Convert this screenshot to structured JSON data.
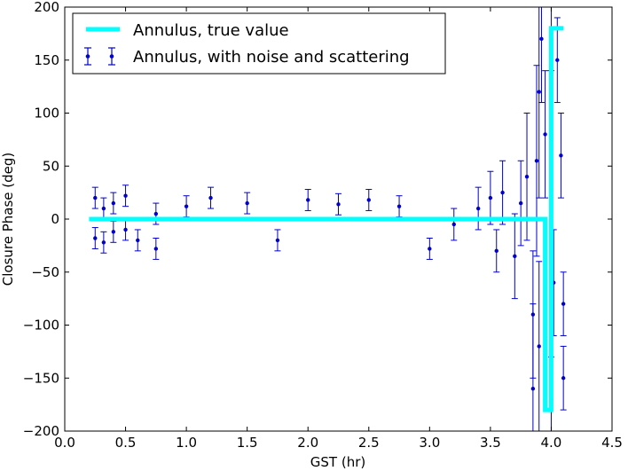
{
  "chart_data": {
    "type": "scatter",
    "title": "",
    "xlabel": "GST (hr)",
    "ylabel": "Closure Phase (deg)",
    "xlim": [
      0.0,
      4.5
    ],
    "ylim": [
      -200,
      200
    ],
    "xticks": [
      0.0,
      0.5,
      1.0,
      1.5,
      2.0,
      2.5,
      3.0,
      3.5,
      4.0,
      4.5
    ],
    "xtick_labels": [
      "0.0",
      "0.5",
      "1.0",
      "1.5",
      "2.0",
      "2.5",
      "3.0",
      "3.5",
      "4.0",
      "4.5"
    ],
    "yticks": [
      -200,
      -150,
      -100,
      -50,
      0,
      50,
      100,
      150,
      200
    ],
    "ytick_labels": [
      "−200",
      "−150",
      "−100",
      "−50",
      "0",
      "50",
      "100",
      "150",
      "200"
    ],
    "grid": false,
    "legend_position": "top-left",
    "series": [
      {
        "name": "Annulus, true value",
        "kind": "line",
        "color": "#00ffff",
        "x": [
          0.2,
          3.95,
          3.95,
          4.0,
          4.0,
          4.1
        ],
        "y": [
          0,
          0,
          -180,
          -180,
          180,
          180
        ]
      },
      {
        "name": "Annulus, with noise and scattering",
        "kind": "errorbar",
        "color": "#0000cc",
        "x": [
          0.25,
          0.25,
          0.32,
          0.32,
          0.4,
          0.4,
          0.5,
          0.5,
          0.6,
          0.75,
          0.75,
          1.0,
          1.2,
          1.5,
          1.75,
          2.0,
          2.25,
          2.5,
          2.75,
          3.0,
          3.2,
          3.4,
          3.5,
          3.55,
          3.6,
          3.7,
          3.75,
          3.8,
          3.85,
          3.85,
          3.88,
          3.9,
          3.9,
          3.92,
          3.95,
          4.0,
          4.0,
          4.02,
          4.05,
          4.08,
          4.1,
          4.1
        ],
        "y": [
          20,
          -18,
          10,
          -22,
          15,
          -12,
          22,
          -10,
          -20,
          5,
          -28,
          12,
          20,
          15,
          -20,
          18,
          14,
          18,
          12,
          -28,
          -5,
          10,
          20,
          -30,
          25,
          -35,
          15,
          40,
          -90,
          -160,
          55,
          120,
          -120,
          170,
          80,
          -170,
          170,
          -60,
          150,
          60,
          -150,
          -80
        ],
        "err": [
          10,
          10,
          10,
          10,
          10,
          10,
          10,
          10,
          10,
          10,
          10,
          10,
          10,
          10,
          10,
          10,
          10,
          10,
          10,
          10,
          15,
          20,
          25,
          20,
          30,
          40,
          40,
          60,
          60,
          80,
          90,
          100,
          80,
          60,
          60,
          40,
          30,
          50,
          40,
          40,
          30,
          30
        ]
      }
    ]
  }
}
